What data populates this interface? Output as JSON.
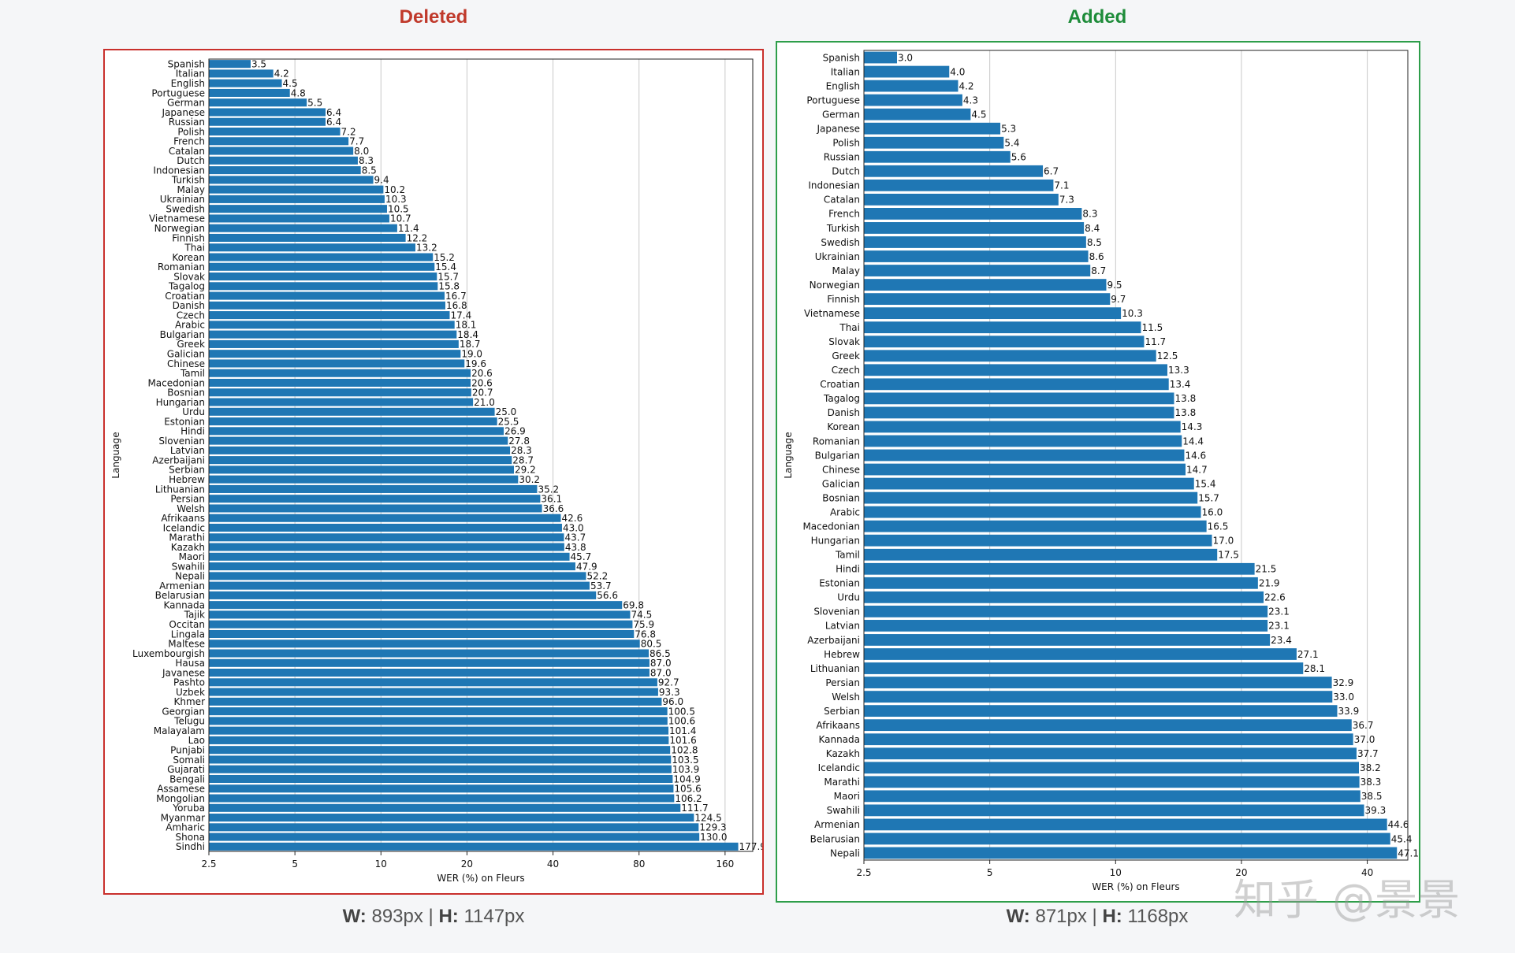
{
  "panels": {
    "left": {
      "heading": "Deleted",
      "dims": {
        "w_label": "W:",
        "w_value": "893px",
        "sep": "|",
        "h_label": "H:",
        "h_value": "1147px"
      }
    },
    "right": {
      "heading": "Added",
      "dims": {
        "w_label": "W:",
        "w_value": "871px",
        "sep": "|",
        "h_label": "H:",
        "h_value": "1168px"
      }
    }
  },
  "watermark": "知乎 @景景",
  "colors": {
    "bar": "#1f77b4",
    "deleted": "#c9302c",
    "added": "#2e9e4a",
    "grid": "#c8c8c8"
  },
  "chart_data": [
    {
      "type": "bar",
      "orientation": "horizontal",
      "xscale": "log",
      "xlabel": "WER (%) on Fleurs",
      "ylabel": "Language",
      "xlim": [
        2.5,
        200
      ],
      "xticks": [
        2.5,
        5,
        10,
        20,
        40,
        80,
        160
      ],
      "xtick_labels": [
        "2.5",
        "5",
        "10",
        "20",
        "40",
        "80",
        "160"
      ],
      "grid": "x",
      "categories": [
        "Spanish",
        "Italian",
        "English",
        "Portuguese",
        "German",
        "Japanese",
        "Russian",
        "Polish",
        "French",
        "Catalan",
        "Dutch",
        "Indonesian",
        "Turkish",
        "Malay",
        "Ukrainian",
        "Swedish",
        "Vietnamese",
        "Norwegian",
        "Finnish",
        "Thai",
        "Korean",
        "Romanian",
        "Slovak",
        "Tagalog",
        "Croatian",
        "Danish",
        "Czech",
        "Arabic",
        "Bulgarian",
        "Greek",
        "Galician",
        "Chinese",
        "Tamil",
        "Macedonian",
        "Bosnian",
        "Hungarian",
        "Urdu",
        "Estonian",
        "Hindi",
        "Slovenian",
        "Latvian",
        "Azerbaijani",
        "Serbian",
        "Hebrew",
        "Lithuanian",
        "Persian",
        "Welsh",
        "Afrikaans",
        "Icelandic",
        "Marathi",
        "Kazakh",
        "Maori",
        "Swahili",
        "Nepali",
        "Armenian",
        "Belarusian",
        "Kannada",
        "Tajik",
        "Occitan",
        "Lingala",
        "Maltese",
        "Luxembourgish",
        "Hausa",
        "Javanese",
        "Pashto",
        "Uzbek",
        "Khmer",
        "Georgian",
        "Telugu",
        "Malayalam",
        "Lao",
        "Punjabi",
        "Somali",
        "Gujarati",
        "Bengali",
        "Assamese",
        "Mongolian",
        "Yoruba",
        "Myanmar",
        "Amharic",
        "Shona",
        "Sindhi"
      ],
      "values": [
        3.5,
        4.2,
        4.5,
        4.8,
        5.5,
        6.4,
        6.4,
        7.2,
        7.7,
        8.0,
        8.3,
        8.5,
        9.4,
        10.2,
        10.3,
        10.5,
        10.7,
        11.4,
        12.2,
        13.2,
        15.2,
        15.4,
        15.7,
        15.8,
        16.7,
        16.8,
        17.4,
        18.1,
        18.4,
        18.7,
        19.0,
        19.6,
        20.6,
        20.6,
        20.7,
        21.0,
        25.0,
        25.5,
        26.9,
        27.8,
        28.3,
        28.7,
        29.2,
        30.2,
        35.2,
        36.1,
        36.6,
        42.6,
        43.0,
        43.7,
        43.8,
        45.7,
        47.9,
        52.2,
        53.7,
        56.6,
        69.8,
        74.5,
        75.9,
        76.8,
        80.5,
        86.5,
        87.0,
        87.0,
        92.7,
        93.3,
        96.0,
        100.5,
        100.6,
        101.4,
        101.6,
        102.8,
        103.5,
        103.9,
        104.9,
        105.6,
        106.2,
        111.7,
        124.5,
        129.3,
        130.0,
        177.9
      ],
      "value_labels": [
        "3.5",
        "4.2",
        "4.5",
        "4.8",
        "5.5",
        "6.4",
        "6.4",
        "7.2",
        "7.7",
        "8.0",
        "8.3",
        "8.5",
        "9.4",
        "10.2",
        "10.3",
        "10.5",
        "10.7",
        "11.4",
        "12.2",
        "13.2",
        "15.2",
        "15.4",
        "15.7",
        "15.8",
        "16.7",
        "16.8",
        "17.4",
        "18.1",
        "18.4",
        "18.7",
        "19.0",
        "19.6",
        "20.6",
        "20.6",
        "20.7",
        "21.0",
        "25.0",
        "25.5",
        "26.9",
        "27.8",
        "28.3",
        "28.7",
        "29.2",
        "30.2",
        "35.2",
        "36.1",
        "36.6",
        "42.6",
        "43.0",
        "43.7",
        "43.8",
        "45.7",
        "47.9",
        "52.2",
        "53.7",
        "56.6",
        "69.8",
        "74.5",
        "75.9",
        "76.8",
        "80.5",
        "86.5",
        "87.0",
        "87.0",
        "92.7",
        "93.3",
        "96.0",
        "100.5",
        "100.6",
        "101.4",
        "101.6",
        "102.8",
        "103.5",
        "103.9",
        "104.9",
        "105.6",
        "106.2",
        "111.7",
        "124.5",
        "129.3",
        "130.0",
        "177.9"
      ]
    },
    {
      "type": "bar",
      "orientation": "horizontal",
      "xscale": "log",
      "xlabel": "WER (%) on Fleurs",
      "ylabel": "Language",
      "xlim": [
        2.5,
        50
      ],
      "xticks": [
        2.5,
        5,
        10,
        20,
        40
      ],
      "xtick_labels": [
        "2.5",
        "5",
        "10",
        "20",
        "40"
      ],
      "grid": "x",
      "categories": [
        "Spanish",
        "Italian",
        "English",
        "Portuguese",
        "German",
        "Japanese",
        "Polish",
        "Russian",
        "Dutch",
        "Indonesian",
        "Catalan",
        "French",
        "Turkish",
        "Swedish",
        "Ukrainian",
        "Malay",
        "Norwegian",
        "Finnish",
        "Vietnamese",
        "Thai",
        "Slovak",
        "Greek",
        "Czech",
        "Croatian",
        "Tagalog",
        "Danish",
        "Korean",
        "Romanian",
        "Bulgarian",
        "Chinese",
        "Galician",
        "Bosnian",
        "Arabic",
        "Macedonian",
        "Hungarian",
        "Tamil",
        "Hindi",
        "Estonian",
        "Urdu",
        "Slovenian",
        "Latvian",
        "Azerbaijani",
        "Hebrew",
        "Lithuanian",
        "Persian",
        "Welsh",
        "Serbian",
        "Afrikaans",
        "Kannada",
        "Kazakh",
        "Icelandic",
        "Marathi",
        "Maori",
        "Swahili",
        "Armenian",
        "Belarusian",
        "Nepali"
      ],
      "values": [
        3.0,
        4.0,
        4.2,
        4.3,
        4.5,
        5.3,
        5.4,
        5.6,
        6.7,
        7.1,
        7.3,
        8.3,
        8.4,
        8.5,
        8.6,
        8.7,
        9.5,
        9.7,
        10.3,
        11.5,
        11.7,
        12.5,
        13.3,
        13.4,
        13.8,
        13.8,
        14.3,
        14.4,
        14.6,
        14.7,
        15.4,
        15.7,
        16.0,
        16.5,
        17.0,
        17.5,
        21.5,
        21.9,
        22.6,
        23.1,
        23.1,
        23.4,
        27.1,
        28.1,
        32.9,
        33.0,
        33.9,
        36.7,
        37.0,
        37.7,
        38.2,
        38.3,
        38.5,
        39.3,
        44.6,
        45.4,
        47.1
      ],
      "value_labels": [
        "3.0",
        "4.0",
        "4.2",
        "4.3",
        "4.5",
        "5.3",
        "5.4",
        "5.6",
        "6.7",
        "7.1",
        "7.3",
        "8.3",
        "8.4",
        "8.5",
        "8.6",
        "8.7",
        "9.5",
        "9.7",
        "10.3",
        "11.5",
        "11.7",
        "12.5",
        "13.3",
        "13.4",
        "13.8",
        "13.8",
        "14.3",
        "14.4",
        "14.6",
        "14.7",
        "15.4",
        "15.7",
        "16.0",
        "16.5",
        "17.0",
        "17.5",
        "21.5",
        "21.9",
        "22.6",
        "23.1",
        "23.1",
        "23.4",
        "27.1",
        "28.1",
        "32.9",
        "33.0",
        "33.9",
        "36.7",
        "37.0",
        "37.7",
        "38.2",
        "38.3",
        "38.5",
        "39.3",
        "44.6",
        "45.4",
        "47.1"
      ]
    }
  ]
}
